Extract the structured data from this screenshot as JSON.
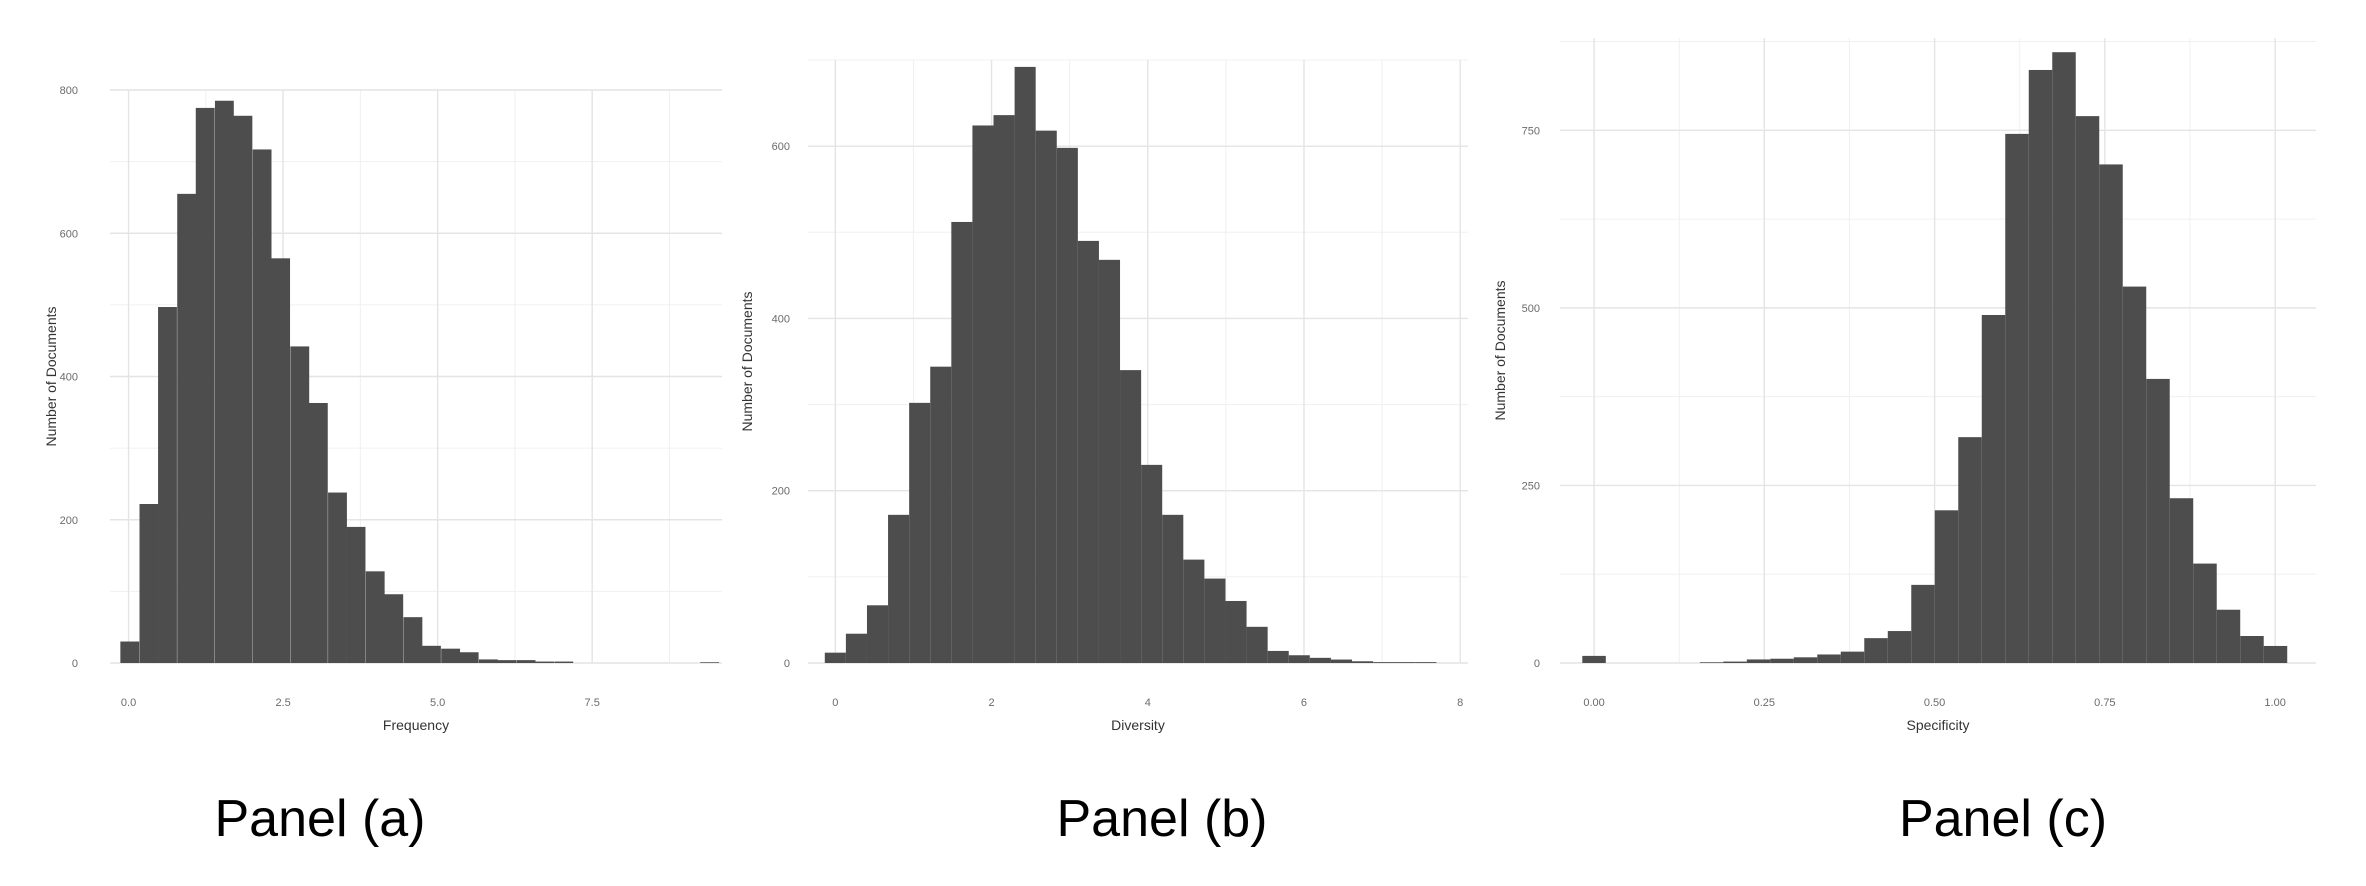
{
  "chart_data": [
    {
      "type": "bar",
      "panel_caption": "Panel (a)",
      "xlabel": "Frequency",
      "ylabel": "Number of Documents",
      "xlim": [
        -0.3,
        9.6
      ],
      "ylim": [
        0,
        800
      ],
      "x_ticks": [
        0.0,
        2.5,
        5.0,
        7.5
      ],
      "x_tick_labels": [
        "0.0",
        "2.5",
        "5.0",
        "7.5"
      ],
      "y_ticks": [
        0,
        200,
        400,
        600,
        800
      ],
      "y_tick_labels": [
        "0",
        "200",
        "400",
        "600",
        "800"
      ],
      "grid": true,
      "bin_width": 0.305,
      "bin_centers": [
        0.02,
        0.33,
        0.63,
        0.94,
        1.24,
        1.55,
        1.85,
        2.16,
        2.46,
        2.77,
        3.07,
        3.38,
        3.68,
        3.99,
        4.29,
        4.6,
        4.9,
        5.21,
        5.51,
        5.82,
        6.12,
        6.43,
        6.73,
        7.04,
        9.4
      ],
      "values": [
        30,
        222,
        497,
        655,
        775,
        785,
        764,
        717,
        565,
        442,
        363,
        238,
        190,
        128,
        96,
        64,
        24,
        20,
        15,
        5,
        4,
        4,
        2,
        2,
        1
      ]
    },
    {
      "type": "bar",
      "panel_caption": "Panel (b)",
      "xlabel": "Diversity",
      "ylabel": "Number of Documents",
      "xlim": [
        -0.35,
        8.1
      ],
      "ylim": [
        0,
        700
      ],
      "x_ticks": [
        0,
        2,
        4,
        6,
        8
      ],
      "x_tick_labels": [
        "0",
        "2",
        "4",
        "6",
        "8"
      ],
      "y_ticks": [
        0,
        200,
        400,
        600
      ],
      "y_tick_labels": [
        "0",
        "200",
        "400",
        "600"
      ],
      "grid": true,
      "bin_width": 0.27,
      "bin_centers": [
        0.0,
        0.27,
        0.54,
        0.81,
        1.08,
        1.35,
        1.62,
        1.89,
        2.16,
        2.43,
        2.7,
        2.97,
        3.24,
        3.51,
        3.78,
        4.05,
        4.32,
        4.59,
        4.86,
        5.13,
        5.4,
        5.67,
        5.94,
        6.21,
        6.48,
        6.75,
        7.02,
        7.29,
        7.56
      ],
      "values": [
        12,
        34,
        67,
        172,
        302,
        344,
        512,
        624,
        636,
        692,
        618,
        598,
        490,
        468,
        340,
        230,
        172,
        120,
        98,
        72,
        42,
        14,
        9,
        6,
        4,
        2,
        1,
        1,
        1
      ]
    },
    {
      "type": "bar",
      "panel_caption": "Panel (c)",
      "xlabel": "Specificity",
      "ylabel": "Number of Documents",
      "xlim": [
        -0.05,
        1.06
      ],
      "ylim": [
        0,
        880
      ],
      "x_ticks": [
        0.0,
        0.25,
        0.5,
        0.75,
        1.0
      ],
      "x_tick_labels": [
        "0.00",
        "0.25",
        "0.50",
        "0.75",
        "1.00"
      ],
      "y_ticks": [
        0,
        250,
        500,
        750
      ],
      "y_tick_labels": [
        "0",
        "250",
        "500",
        "750"
      ],
      "grid": true,
      "bin_width": 0.0345,
      "bin_centers": [
        0.0,
        0.0345,
        0.069,
        0.1035,
        0.138,
        0.1725,
        0.207,
        0.2415,
        0.276,
        0.3105,
        0.345,
        0.3795,
        0.414,
        0.4485,
        0.483,
        0.5175,
        0.552,
        0.5865,
        0.621,
        0.6555,
        0.69,
        0.7245,
        0.759,
        0.7935,
        0.828,
        0.8625,
        0.897,
        0.9315,
        0.966,
        1.0005
      ],
      "values": [
        10,
        0,
        0,
        0,
        0,
        1,
        2,
        5,
        6,
        8,
        12,
        16,
        35,
        45,
        110,
        215,
        318,
        490,
        745,
        835,
        860,
        770,
        702,
        530,
        400,
        232,
        140,
        75,
        38,
        24
      ]
    }
  ]
}
